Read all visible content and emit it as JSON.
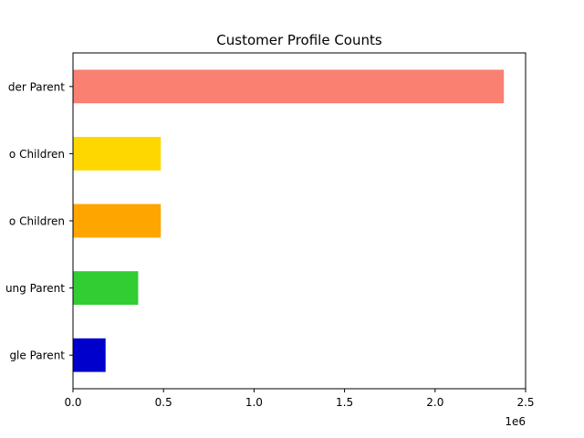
{
  "chart_data": {
    "type": "bar",
    "orientation": "horizontal",
    "title": "Customer Profile Counts",
    "xlabel": "",
    "ylabel": "",
    "x_offset_label": "1e6",
    "xlim": [
      0,
      2.5
    ],
    "xticks": [
      {
        "value": 0.0,
        "label": "0.0"
      },
      {
        "value": 0.5,
        "label": "0.5"
      },
      {
        "value": 1.0,
        "label": "1.0"
      },
      {
        "value": 1.5,
        "label": "1.5"
      },
      {
        "value": 2.0,
        "label": "2.0"
      },
      {
        "value": 2.5,
        "label": "2.5"
      }
    ],
    "categories": [
      "gle Parent",
      "ung Parent",
      "o Children",
      "o Children",
      "der Parent"
    ],
    "values": [
      0.18,
      0.36,
      0.485,
      0.485,
      2.38
    ],
    "colors": [
      "#0000CD",
      "#32CD32",
      "#FFA500",
      "#FFD700",
      "#FA8072"
    ],
    "grid": false
  }
}
